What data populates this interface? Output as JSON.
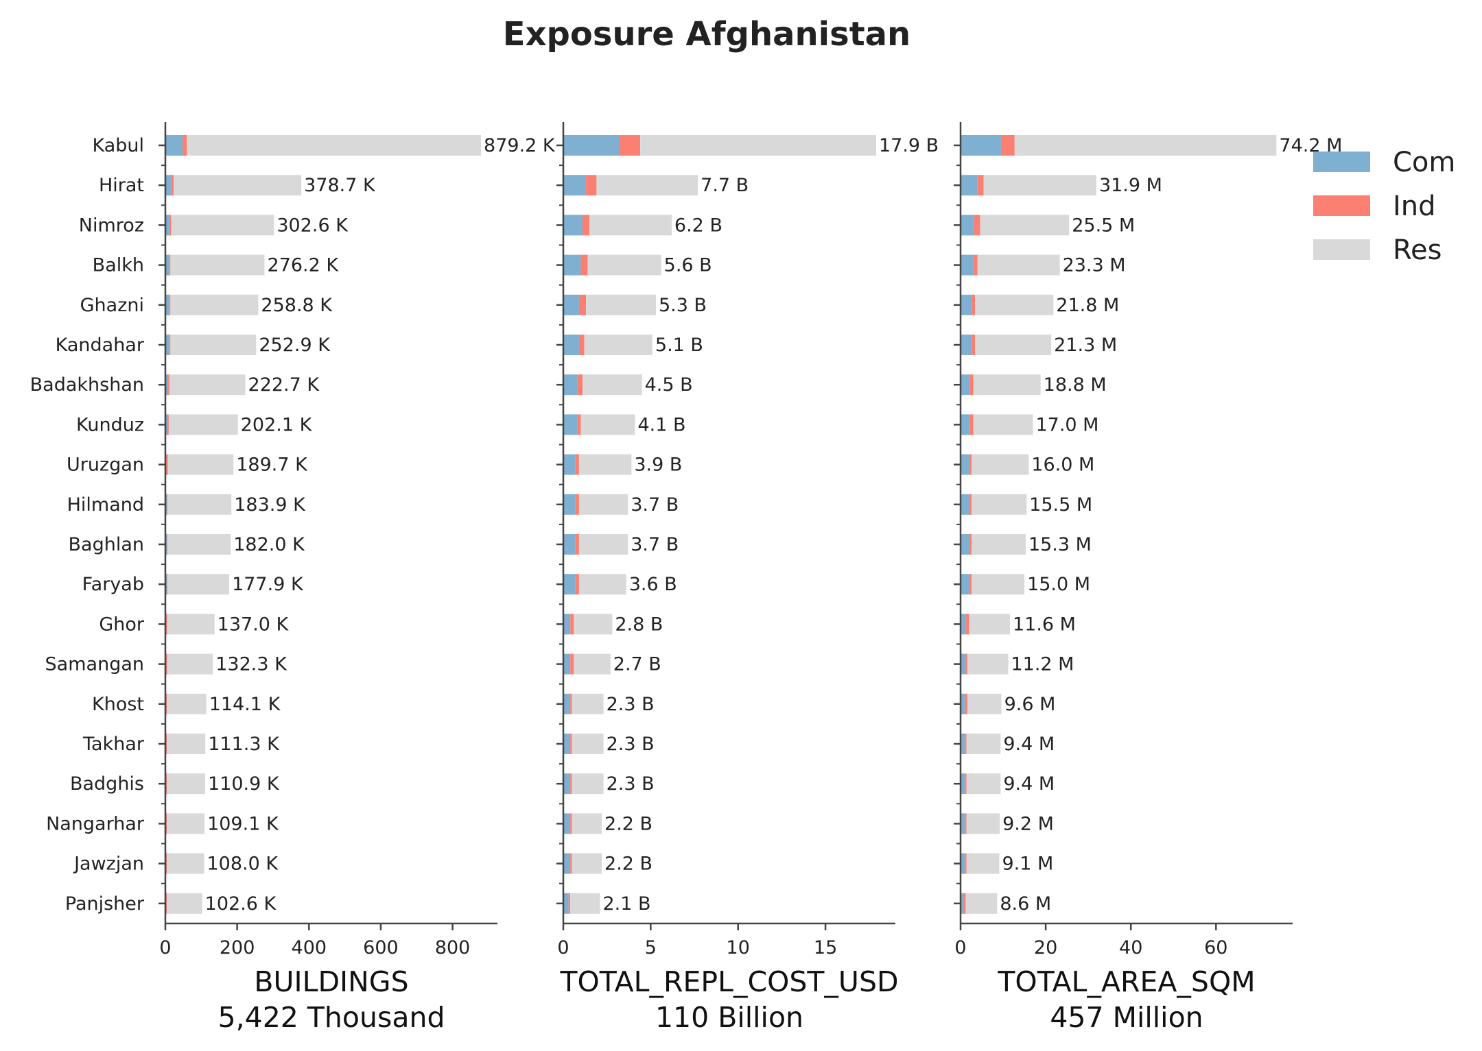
{
  "chart_data": {
    "type": "bar",
    "title": "Exposure Afghanistan",
    "colors": {
      "Com": "#7fb0d2",
      "Ind": "#fb8072",
      "Res": "#d9d9d9",
      "axis": "#444444",
      "text": "#222222"
    },
    "legend": {
      "placement": "top-right",
      "entries": [
        "Com",
        "Ind",
        "Res"
      ]
    },
    "grid": false,
    "categories": [
      "Kabul",
      "Hirat",
      "Nimroz",
      "Balkh",
      "Ghazni",
      "Kandahar",
      "Badakhshan",
      "Kunduz",
      "Uruzgan",
      "Hilmand",
      "Baghlan",
      "Faryab",
      "Ghor",
      "Samangan",
      "Khost",
      "Takhar",
      "Badghis",
      "Nangarhar",
      "Jawzjan",
      "Panjsher"
    ],
    "panels": [
      {
        "xlabel": "BUILDINGS",
        "subtitle": "5,422 Thousand",
        "xlim": [
          0,
          925
        ],
        "xticks": [
          0,
          200,
          400,
          600,
          800
        ],
        "xtick_labels": [
          "0",
          "200",
          "400",
          "600",
          "800"
        ],
        "series": [
          {
            "name": "Com",
            "values": [
              48,
              17,
              12,
              10,
              10,
              10,
              8,
              8,
              2,
              4,
              4,
              4,
              2,
              2,
              1,
              1,
              1,
              1,
              1,
              1
            ]
          },
          {
            "name": "Ind",
            "values": [
              12,
              6,
              4,
              4,
              4,
              4,
              4,
              2,
              5,
              2,
              2,
              2,
              3,
              3,
              3,
              3,
              3,
              3,
              3,
              3
            ]
          },
          {
            "name": "Res",
            "values": [
              819.2,
              355.7,
              286.6,
              262.2,
              244.8,
              238.9,
              210.7,
              192.1,
              182.7,
              177.9,
              176.0,
              171.9,
              132.0,
              127.3,
              110.1,
              107.3,
              106.9,
              105.1,
              104.0,
              98.6
            ]
          }
        ],
        "total_labels": [
          "879.2 K",
          "378.7 K",
          "302.6 K",
          "276.2 K",
          "258.8 K",
          "252.9 K",
          "222.7 K",
          "202.1 K",
          "189.7 K",
          "183.9 K",
          "182.0 K",
          "177.9 K",
          "137.0 K",
          "132.3 K",
          "114.1 K",
          "111.3 K",
          "110.9 K",
          "109.1 K",
          "108.0 K",
          "102.6 K"
        ]
      },
      {
        "xlabel": "TOTAL_REPL_COST_USD",
        "subtitle": "110 Billion",
        "xlim": [
          0,
          19
        ],
        "xticks": [
          0,
          5,
          10,
          15
        ],
        "xtick_labels": [
          "0",
          "5",
          "10",
          "15"
        ],
        "series": [
          {
            "name": "Com",
            "values": [
              3.2,
              1.3,
              1.1,
              1.0,
              0.9,
              0.9,
              0.8,
              0.8,
              0.7,
              0.7,
              0.7,
              0.7,
              0.4,
              0.4,
              0.4,
              0.4,
              0.4,
              0.4,
              0.4,
              0.3
            ]
          },
          {
            "name": "Ind",
            "values": [
              1.2,
              0.6,
              0.4,
              0.4,
              0.4,
              0.3,
              0.3,
              0.2,
              0.2,
              0.2,
              0.2,
              0.2,
              0.2,
              0.2,
              0.1,
              0.1,
              0.1,
              0.1,
              0.1,
              0.1
            ]
          },
          {
            "name": "Res",
            "values": [
              13.5,
              5.8,
              4.7,
              4.2,
              4.0,
              3.9,
              3.4,
              3.1,
              3.0,
              2.8,
              2.8,
              2.7,
              2.2,
              2.1,
              1.8,
              1.8,
              1.8,
              1.7,
              1.7,
              1.7
            ]
          }
        ],
        "total_labels": [
          "17.9 B",
          "7.7 B",
          "6.2 B",
          "5.6 B",
          "5.3 B",
          "5.1 B",
          "4.5 B",
          "4.1 B",
          "3.9 B",
          "3.7 B",
          "3.7 B",
          "3.6 B",
          "2.8 B",
          "2.7 B",
          "2.3 B",
          "2.3 B",
          "2.3 B",
          "2.2 B",
          "2.2 B",
          "2.1 B"
        ]
      },
      {
        "xlabel": "TOTAL_AREA_SQM",
        "subtitle": "457 Million",
        "xlim": [
          0,
          78
        ],
        "xticks": [
          0,
          20,
          40,
          60
        ],
        "xtick_labels": [
          "0",
          "20",
          "40",
          "60"
        ],
        "series": [
          {
            "name": "Com",
            "values": [
              9.5,
              4.0,
              3.2,
              3.0,
              2.6,
              2.6,
              2.2,
              2.2,
              2.0,
              2.0,
              2.0,
              2.0,
              1.2,
              1.2,
              1.0,
              1.0,
              1.0,
              1.0,
              1.0,
              0.8
            ]
          },
          {
            "name": "Ind",
            "values": [
              3.2,
              1.4,
              1.4,
              1.0,
              0.8,
              0.8,
              0.8,
              0.8,
              0.6,
              0.6,
              0.6,
              0.6,
              0.8,
              0.4,
              0.6,
              0.4,
              0.4,
              0.4,
              0.4,
              0.4
            ]
          },
          {
            "name": "Res",
            "values": [
              61.5,
              26.5,
              20.9,
              19.3,
              18.4,
              17.9,
              15.8,
              14.0,
              13.4,
              12.9,
              12.7,
              12.4,
              9.6,
              9.6,
              8.0,
              8.0,
              8.0,
              7.8,
              7.7,
              7.4
            ]
          }
        ],
        "total_labels": [
          "74.2 M",
          "31.9 M",
          "25.5 M",
          "23.3 M",
          "21.8 M",
          "21.3 M",
          "18.8 M",
          "17.0 M",
          "16.0 M",
          "15.5 M",
          "15.3 M",
          "15.0 M",
          "11.6 M",
          "11.2 M",
          "9.6 M",
          "9.4 M",
          "9.4 M",
          "9.2 M",
          "9.1 M",
          "8.6 M"
        ]
      }
    ]
  }
}
